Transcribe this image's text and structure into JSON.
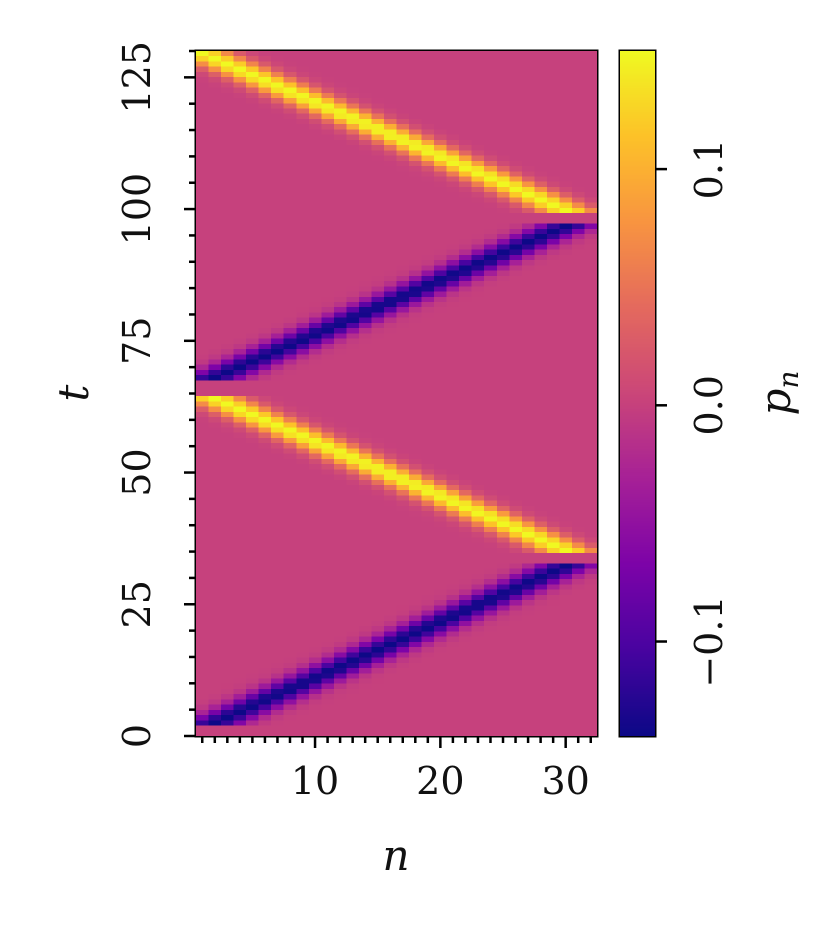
{
  "chart_data": {
    "type": "heatmap",
    "xlabel": "n",
    "ylabel": "t",
    "colorbar_label": {
      "base": "p",
      "sub": "n"
    },
    "xlim": [
      0.5,
      32.5
    ],
    "ylim": [
      0,
      130
    ],
    "x_ticks": [
      10,
      20,
      30
    ],
    "x_tick_labels": [
      "10",
      "20",
      "30"
    ],
    "y_ticks": [
      0,
      25,
      50,
      75,
      100,
      125
    ],
    "y_tick_labels": [
      "0",
      "25",
      "50",
      "75",
      "100",
      "125"
    ],
    "colorbar_range": [
      -0.14,
      0.15
    ],
    "colorbar_ticks": [
      -0.1,
      0.0,
      0.1
    ],
    "colorbar_tick_labels": [
      "−0.1",
      "0.0",
      "0.1"
    ],
    "colormap": "plasma",
    "n_sites": 32,
    "n_steps": 131,
    "pulses": [
      {
        "sign": -1,
        "amplitude": 0.14,
        "t_start": 2,
        "t_end": 32,
        "n_start": 2,
        "n_end": 30
      },
      {
        "sign": 1,
        "amplitude": 0.15,
        "t_start": 35,
        "t_end": 64,
        "n_start": 30,
        "n_end": 2
      },
      {
        "sign": -1,
        "amplitude": 0.14,
        "t_start": 68,
        "t_end": 97,
        "n_start": 2,
        "n_end": 30
      },
      {
        "sign": 1,
        "amplitude": 0.15,
        "t_start": 100,
        "t_end": 130,
        "n_start": 30,
        "n_end": 1
      }
    ],
    "pulse_width_sites": 1.6
  }
}
